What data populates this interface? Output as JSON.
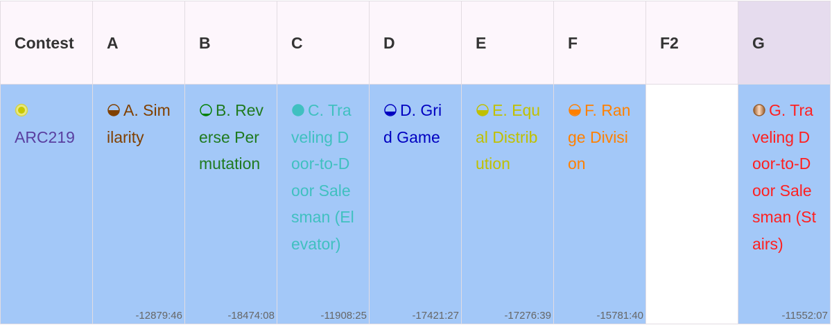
{
  "header": {
    "columns": [
      "Contest",
      "A",
      "B",
      "C",
      "D",
      "E",
      "F",
      "F2",
      "G"
    ]
  },
  "row": {
    "contest": "ARC219",
    "problems": [
      {
        "title": "A. Similarity",
        "time": "-12879:46"
      },
      {
        "title": "B. Reverse Permutation",
        "time": "-18474:08"
      },
      {
        "title": "C. Traveling Door-to-Door Salesman (Elevator)",
        "time": "-11908:25"
      },
      {
        "title": "D. Grid Game",
        "time": "-17421:27"
      },
      {
        "title": "E. Equal Distribution",
        "time": "-17276:39"
      },
      {
        "title": "F. Range Division",
        "time": "-15781:40"
      },
      {
        "title": "G. Traveling Door-to-Door Salesman (Stairs)",
        "time": "-11552:07"
      }
    ]
  }
}
